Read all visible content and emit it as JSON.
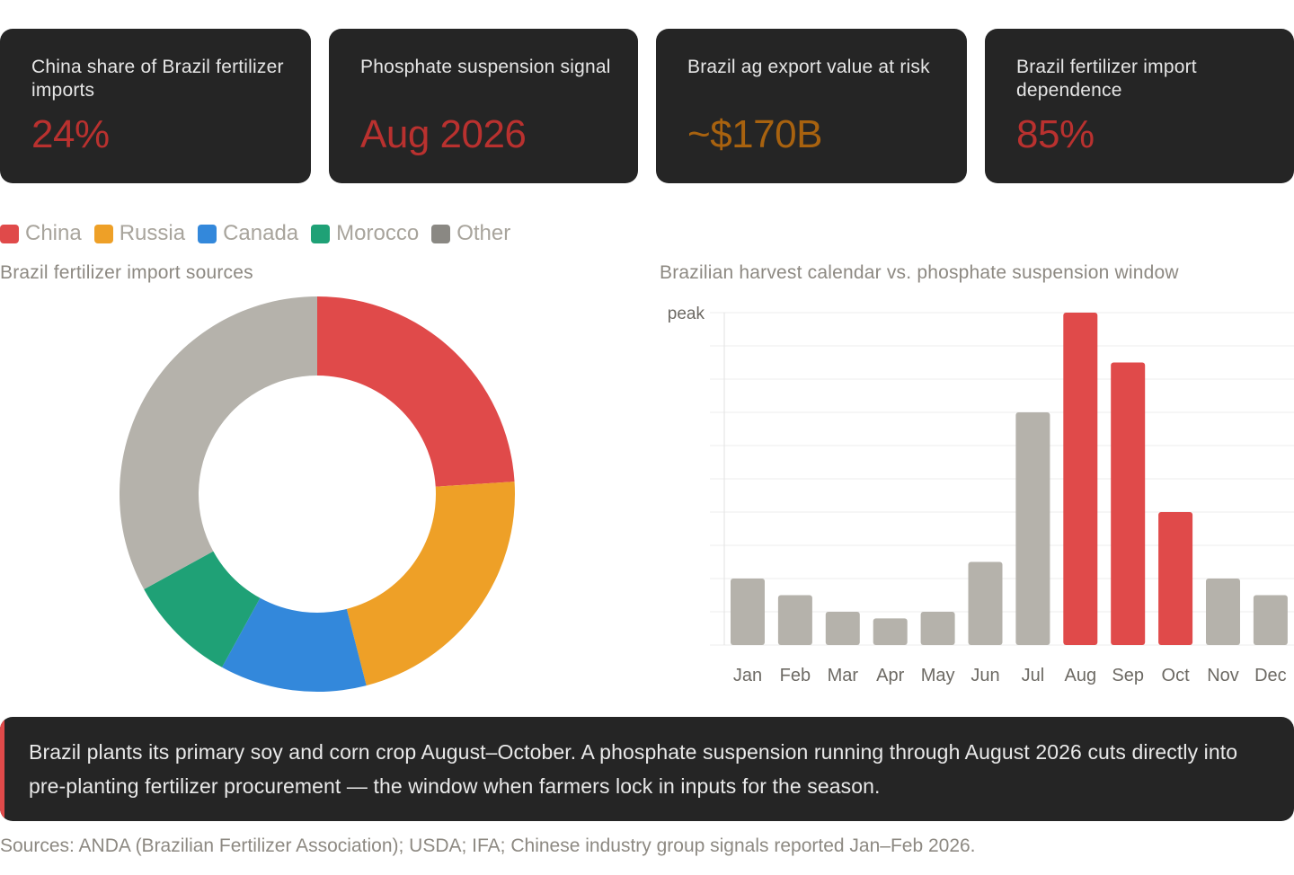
{
  "cards": [
    {
      "label": "China share of Brazil fertilizer imports",
      "value": "24%",
      "color": "#b9312f"
    },
    {
      "label": "Phosphate suspension signal",
      "value": "Aug 2026",
      "color": "#b9312f"
    },
    {
      "label": "Brazil ag export value at risk",
      "value": "~$170B",
      "color": "#a8620f"
    },
    {
      "label": "Brazil fertilizer import dependence",
      "value": "85%",
      "color": "#b9312f"
    }
  ],
  "legend": [
    {
      "label": "China",
      "color": "#e04a4a"
    },
    {
      "label": "Russia",
      "color": "#eea027"
    },
    {
      "label": "Canada",
      "color": "#3388db"
    },
    {
      "label": "Morocco",
      "color": "#1fa176"
    },
    {
      "label": "Other",
      "color": "#8a8883"
    }
  ],
  "chart_data": [
    {
      "type": "pie",
      "title": "Brazil fertilizer import sources",
      "categories": [
        "China",
        "Russia",
        "Canada",
        "Morocco",
        "Other"
      ],
      "values": [
        24,
        22,
        12,
        9,
        33
      ],
      "colors": [
        "#e04a4a",
        "#eea027",
        "#3388db",
        "#1fa176",
        "#b5b2ab"
      ],
      "donut": true
    },
    {
      "type": "bar",
      "title": "Brazilian harvest calendar vs. phosphate suspension window",
      "categories": [
        "Jan",
        "Feb",
        "Mar",
        "Apr",
        "May",
        "Jun",
        "Jul",
        "Aug",
        "Sep",
        "Oct",
        "Nov",
        "Dec"
      ],
      "values": [
        2,
        1.5,
        1,
        0.8,
        1,
        2.5,
        7,
        10,
        8.5,
        4,
        2,
        1.5
      ],
      "highlight": [
        false,
        false,
        false,
        false,
        false,
        false,
        false,
        true,
        true,
        true,
        false,
        false
      ],
      "bar_color": "#b5b2ab",
      "highlight_color": "#e04a4a",
      "ylim": [
        0,
        10
      ],
      "y_tick_label": "peak",
      "grid": true
    }
  ],
  "callout": {
    "text": "Brazil plants its primary soy and corn crop August–October. A phosphate suspension running through August 2026 cuts directly into pre-planting fertilizer procurement — the window when farmers lock in inputs for the season."
  },
  "sources": "Sources: ANDA (Brazilian Fertilizer Association); USDA; IFA; Chinese industry group signals reported Jan–Feb 2026."
}
